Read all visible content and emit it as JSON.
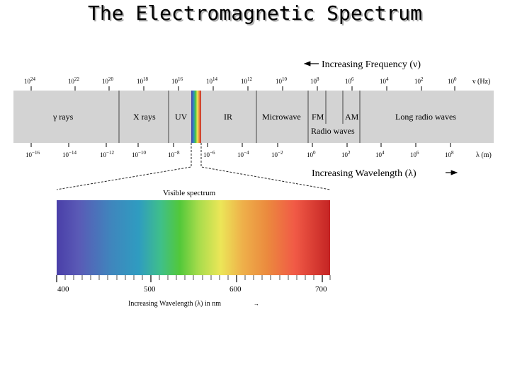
{
  "slide": {
    "title": "The Electromagnetic Spectrum"
  },
  "spectrum": {
    "frequency_arrow_label": "Increasing Frequency (ν)",
    "frequency_unit": "ν (Hz)",
    "wavelength_arrow_label": "Increasing Wavelength (λ)",
    "wavelength_unit": "λ (m)",
    "frequency_ticks": [
      {
        "base": "10",
        "exp": "24"
      },
      {
        "base": "10",
        "exp": "22"
      },
      {
        "base": "10",
        "exp": "20"
      },
      {
        "base": "10",
        "exp": "18"
      },
      {
        "base": "10",
        "exp": "16"
      },
      {
        "base": "10",
        "exp": "14"
      },
      {
        "base": "10",
        "exp": "12"
      },
      {
        "base": "10",
        "exp": "10"
      },
      {
        "base": "10",
        "exp": "8"
      },
      {
        "base": "10",
        "exp": "6"
      },
      {
        "base": "10",
        "exp": "4"
      },
      {
        "base": "10",
        "exp": "2"
      },
      {
        "base": "10",
        "exp": "0"
      }
    ],
    "wavelength_ticks": [
      {
        "base": "10",
        "exp": "−16"
      },
      {
        "base": "10",
        "exp": "−14"
      },
      {
        "base": "10",
        "exp": "−12"
      },
      {
        "base": "10",
        "exp": "−10"
      },
      {
        "base": "10",
        "exp": "−8"
      },
      {
        "base": "10",
        "exp": "−6"
      },
      {
        "base": "10",
        "exp": "−4"
      },
      {
        "base": "10",
        "exp": "−2"
      },
      {
        "base": "10",
        "exp": "0"
      },
      {
        "base": "10",
        "exp": "2"
      },
      {
        "base": "10",
        "exp": "4"
      },
      {
        "base": "10",
        "exp": "6"
      },
      {
        "base": "10",
        "exp": "8"
      }
    ],
    "regions": [
      "γ rays",
      "X rays",
      "UV",
      "IR",
      "Microwave",
      "FM",
      "AM",
      "Radio waves",
      "Long radio waves"
    ]
  },
  "visible": {
    "title": "Visible spectrum",
    "nm_ticks": [
      "400",
      "500",
      "600",
      "700"
    ],
    "wavelength_label": "Increasing Wavelength (λ) in nm",
    "arrow_glyph": "→"
  },
  "colors": {
    "band": "#d3d3d3",
    "violet": "#4a3fa8",
    "blue": "#2f8fc0",
    "green": "#4ec83a",
    "yellow": "#ece658",
    "orange": "#eb8a3e",
    "red": "#c42424"
  }
}
